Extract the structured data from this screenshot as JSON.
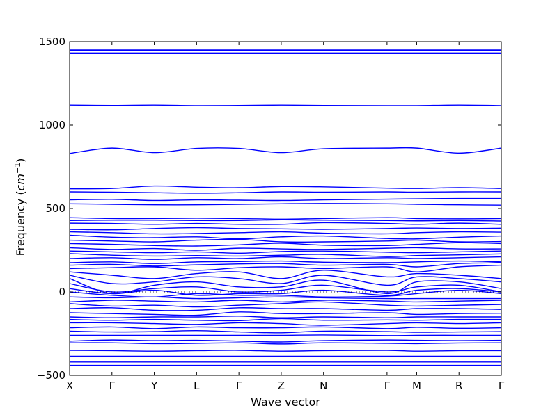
{
  "chart_data": {
    "type": "line",
    "title": "",
    "xlabel": "Wave vector",
    "ylabel": "Frequency ($cm^{-1}$)",
    "ylabel_parts": {
      "prefix": "Frequency (",
      "unit_base": "cm",
      "unit_exp": "−1",
      "suffix": ")"
    },
    "ylim": [
      -500,
      1500
    ],
    "yticks": [
      -500,
      0,
      500,
      1000,
      1500
    ],
    "ytick_labels": [
      "−500",
      "0",
      "500",
      "1000",
      "1500"
    ],
    "x_path_labels": [
      "X",
      "Γ",
      "Y",
      "L",
      "Γ",
      "Z",
      "N",
      "Γ",
      "M",
      "R",
      "Γ"
    ],
    "x_path_positions": [
      0,
      1,
      2,
      3,
      4,
      5,
      6,
      7.5,
      8.2,
      9.2,
      10.2
    ],
    "zero_line": {
      "y": 0,
      "style": "dotted"
    },
    "line_color": "#0000ff",
    "legend": "none",
    "grid": false,
    "series": [
      {
        "values": [
          1455,
          1455,
          1455,
          1455,
          1455,
          1455,
          1455,
          1455,
          1455,
          1455,
          1455
        ]
      },
      {
        "values": [
          1448,
          1448,
          1448,
          1448,
          1448,
          1448,
          1448,
          1448,
          1448,
          1448,
          1448
        ]
      },
      {
        "values": [
          1432,
          1432,
          1432,
          1432,
          1432,
          1432,
          1432,
          1432,
          1432,
          1432,
          1432
        ]
      },
      {
        "values": [
          1120,
          1118,
          1120,
          1117,
          1118,
          1120,
          1118,
          1117,
          1117,
          1120,
          1117
        ]
      },
      {
        "values": [
          830,
          862,
          835,
          860,
          860,
          835,
          858,
          862,
          862,
          832,
          862
        ]
      },
      {
        "values": [
          618,
          620,
          635,
          628,
          625,
          632,
          630,
          622,
          620,
          625,
          620
        ]
      },
      {
        "values": [
          600,
          598,
          595,
          592,
          595,
          600,
          598,
          600,
          598,
          600,
          600
        ]
      },
      {
        "values": [
          552,
          555,
          548,
          552,
          550,
          548,
          552,
          556,
          558,
          560,
          560
        ]
      },
      {
        "values": [
          528,
          525,
          522,
          522,
          525,
          528,
          530,
          528,
          525,
          522,
          520
        ]
      },
      {
        "values": [
          445,
          440,
          440,
          442,
          440,
          436,
          440,
          445,
          440,
          438,
          440
        ]
      },
      {
        "values": [
          428,
          430,
          430,
          428,
          428,
          432,
          430,
          428,
          426,
          428,
          425
        ]
      },
      {
        "values": [
          412,
          410,
          405,
          410,
          405,
          405,
          415,
          410,
          405,
          412,
          405
        ]
      },
      {
        "values": [
          375,
          372,
          380,
          385,
          380,
          378,
          375,
          380,
          383,
          380,
          382
        ]
      },
      {
        "values": [
          360,
          355,
          348,
          350,
          355,
          360,
          352,
          348,
          355,
          360,
          358
        ]
      },
      {
        "values": [
          340,
          328,
          325,
          330,
          318,
          330,
          335,
          320,
          318,
          328,
          335
        ]
      },
      {
        "values": [
          310,
          305,
          300,
          310,
          315,
          300,
          300,
          305,
          310,
          300,
          302
        ]
      },
      {
        "values": [
          290,
          285,
          278,
          275,
          282,
          292,
          280,
          278,
          285,
          295,
          290
        ]
      },
      {
        "values": [
          265,
          255,
          260,
          250,
          262,
          258,
          255,
          262,
          265,
          258,
          258
        ]
      },
      {
        "values": [
          245,
          240,
          235,
          240,
          232,
          242,
          245,
          238,
          235,
          240,
          245
        ]
      },
      {
        "values": [
          230,
          220,
          215,
          218,
          215,
          220,
          225,
          212,
          218,
          222,
          228
        ]
      },
      {
        "values": [
          200,
          205,
          195,
          205,
          200,
          210,
          200,
          205,
          200,
          205,
          210
        ]
      },
      {
        "values": [
          175,
          180,
          170,
          180,
          182,
          185,
          178,
          175,
          180,
          185,
          180
        ]
      },
      {
        "values": [
          160,
          165,
          155,
          162,
          168,
          170,
          160,
          165,
          150,
          170,
          175
        ]
      },
      {
        "values": [
          140,
          145,
          150,
          130,
          145,
          150,
          140,
          150,
          120,
          150,
          160
        ]
      },
      {
        "values": [
          120,
          100,
          80,
          110,
          120,
          80,
          130,
          90,
          110,
          100,
          80
        ]
      },
      {
        "values": [
          100,
          50,
          60,
          90,
          80,
          50,
          100,
          40,
          90,
          80,
          60
        ]
      },
      {
        "values": [
          80,
          -10,
          40,
          60,
          30,
          30,
          70,
          -10,
          60,
          60,
          20
        ]
      },
      {
        "values": [
          50,
          0,
          20,
          30,
          0,
          10,
          40,
          0,
          30,
          40,
          0
        ]
      },
      {
        "values": [
          20,
          -10,
          10,
          -20,
          -10,
          -10,
          10,
          -20,
          10,
          20,
          0
        ]
      },
      {
        "values": [
          0,
          -20,
          -30,
          -10,
          -20,
          -20,
          -30,
          -25,
          -10,
          10,
          -10
        ]
      },
      {
        "values": [
          -30,
          -35,
          -30,
          -40,
          -35,
          -30,
          -35,
          -40,
          -40,
          -40,
          -40
        ]
      },
      {
        "values": [
          -60,
          -50,
          -55,
          -60,
          -50,
          -60,
          -50,
          -55,
          -60,
          -55,
          -50
        ]
      },
      {
        "values": [
          -70,
          -85,
          -80,
          -90,
          -80,
          -70,
          -60,
          -80,
          -85,
          -80,
          -75
        ]
      },
      {
        "values": [
          -100,
          -95,
          -110,
          -110,
          -95,
          -100,
          -100,
          -110,
          -100,
          -100,
          -105
        ]
      },
      {
        "values": [
          -125,
          -130,
          -135,
          -140,
          -120,
          -130,
          -130,
          -125,
          -135,
          -130,
          -128
        ]
      },
      {
        "values": [
          -150,
          -155,
          -150,
          -150,
          -145,
          -155,
          -150,
          -155,
          -150,
          -150,
          -150
        ]
      },
      {
        "values": [
          -165,
          -170,
          -165,
          -170,
          -172,
          -160,
          -170,
          -168,
          -170,
          -165,
          -165
        ]
      },
      {
        "values": [
          -185,
          -185,
          -190,
          -195,
          -185,
          -190,
          -200,
          -190,
          -185,
          -190,
          -185
        ]
      },
      {
        "values": [
          -215,
          -210,
          -220,
          -210,
          -215,
          -215,
          -210,
          -220,
          -212,
          -218,
          -215
        ]
      },
      {
        "values": [
          -235,
          -240,
          -238,
          -232,
          -240,
          -245,
          -235,
          -238,
          -242,
          -240,
          -238
        ]
      },
      {
        "values": [
          -260,
          -260,
          -260,
          -260,
          -260,
          -260,
          -258,
          -262,
          -260,
          -260,
          -260
        ]
      },
      {
        "values": [
          -295,
          -288,
          -292,
          -290,
          -295,
          -300,
          -292,
          -288,
          -290,
          -292,
          -290
        ]
      },
      {
        "values": [
          -305,
          -305,
          -310,
          -308,
          -305,
          -312,
          -305,
          -308,
          -310,
          -306,
          -305
        ]
      },
      {
        "values": [
          -350,
          -352,
          -355,
          -352,
          -350,
          -355,
          -352,
          -350,
          -355,
          -352,
          -352
        ]
      },
      {
        "values": [
          -385,
          -385,
          -385,
          -385,
          -385,
          -385,
          -385,
          -385,
          -385,
          -385,
          -385
        ]
      },
      {
        "values": [
          -420,
          -420,
          -420,
          -420,
          -420,
          -420,
          -420,
          -420,
          -420,
          -420,
          -420
        ]
      },
      {
        "values": [
          -440,
          -440,
          -440,
          -440,
          -440,
          -440,
          -440,
          -440,
          -440,
          -440,
          -440
        ]
      }
    ]
  }
}
